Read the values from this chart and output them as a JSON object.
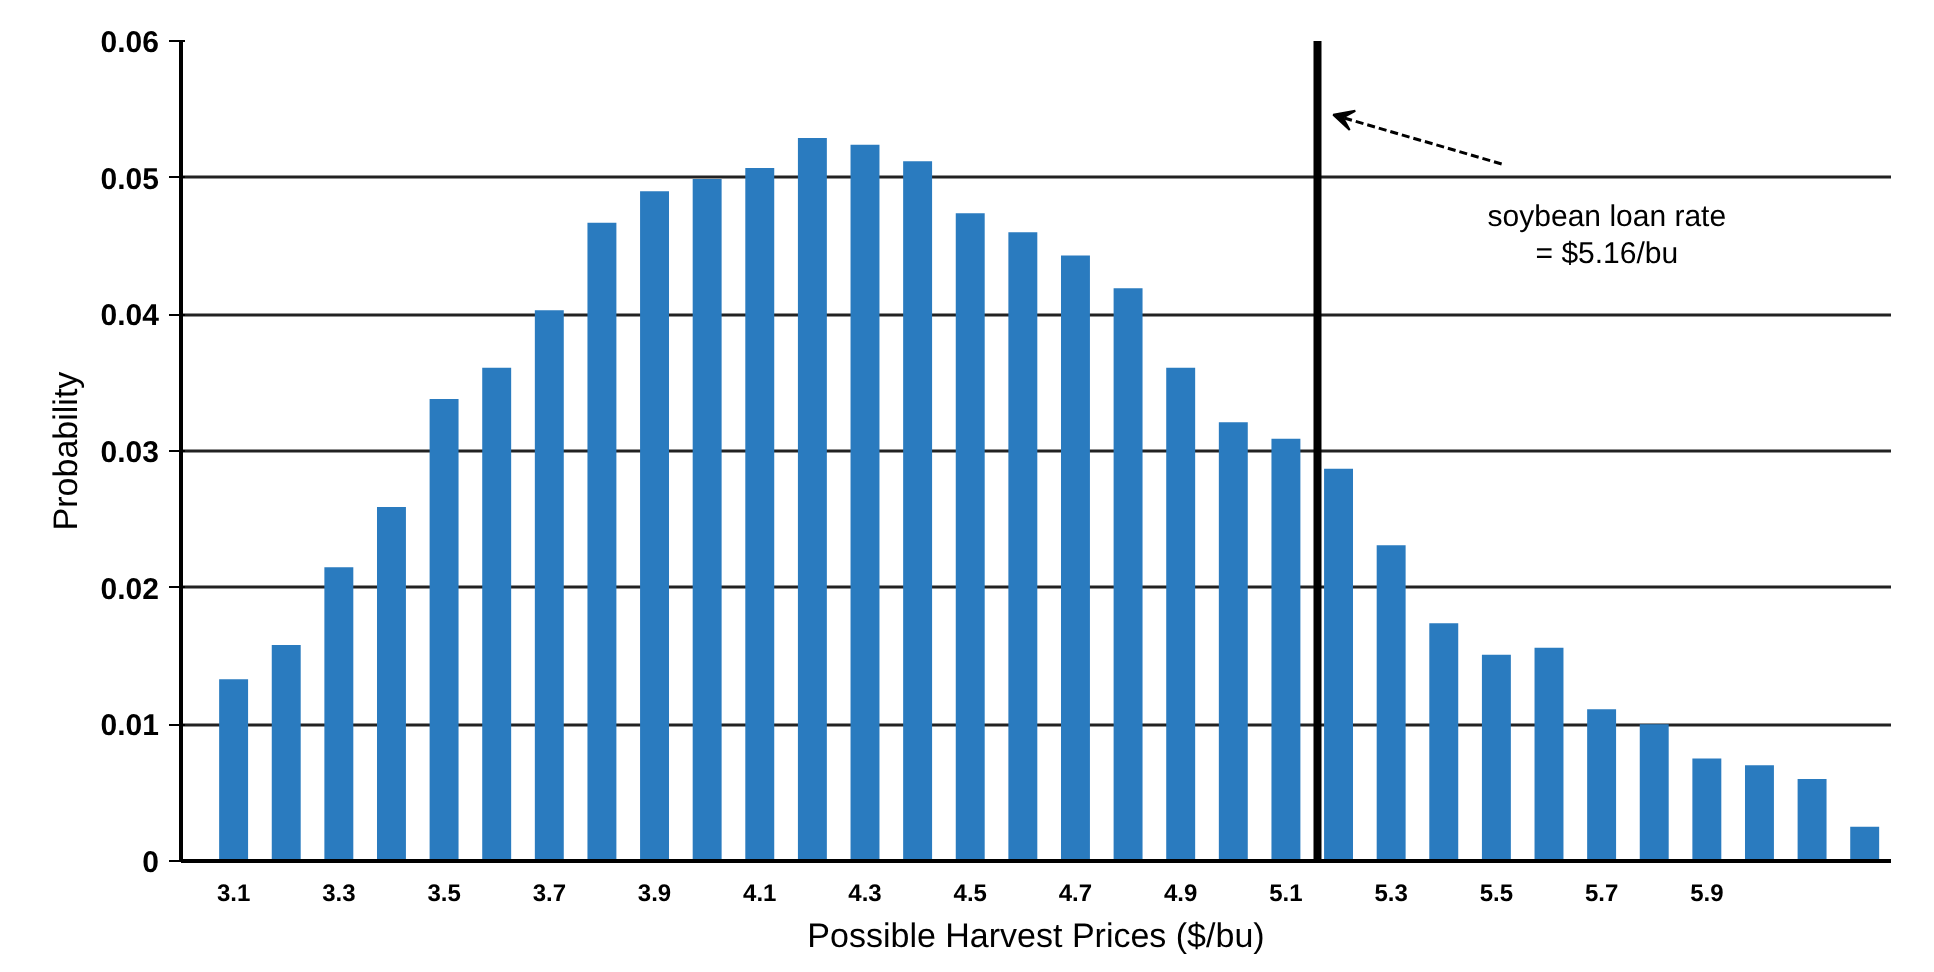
{
  "chart_data": {
    "type": "bar",
    "xlabel": "Possible Harvest Prices ($/bu)",
    "ylabel": "Probability",
    "x": [
      3.1,
      3.2,
      3.3,
      3.4,
      3.5,
      3.6,
      3.7,
      3.8,
      3.9,
      4.0,
      4.1,
      4.2,
      4.3,
      4.4,
      4.5,
      4.6,
      4.7,
      4.8,
      4.9,
      5.0,
      5.1,
      5.2,
      5.3,
      5.4,
      5.5,
      5.6,
      5.7,
      5.8,
      5.9,
      6.0,
      6.1,
      6.2
    ],
    "values": [
      0.0133,
      0.0158,
      0.0215,
      0.0259,
      0.0338,
      0.0361,
      0.0403,
      0.0467,
      0.049,
      0.0499,
      0.0507,
      0.0529,
      0.0524,
      0.0512,
      0.0474,
      0.046,
      0.0443,
      0.0419,
      0.0361,
      0.0321,
      0.0309,
      0.0287,
      0.0231,
      0.0174,
      0.0151,
      0.0156,
      0.0111,
      0.01,
      0.0075,
      0.007,
      0.006,
      0.0025
    ],
    "color": "#2a7bbf",
    "xlim": [
      3.0,
      6.25
    ],
    "xticks": [
      3.1,
      3.3,
      3.5,
      3.7,
      3.9,
      4.1,
      4.3,
      4.5,
      4.7,
      4.9,
      5.1,
      5.3,
      5.5,
      5.7,
      5.9
    ],
    "ylim": [
      0,
      0.06
    ],
    "yticks": [
      0,
      0.01,
      0.02,
      0.03,
      0.04,
      0.05,
      0.06
    ],
    "grid": "y",
    "ref_lines": [
      {
        "axis": "x",
        "value": 5.16,
        "label": "soybean loan rate\n= $5.16/bu",
        "color": "#000000"
      }
    ]
  }
}
